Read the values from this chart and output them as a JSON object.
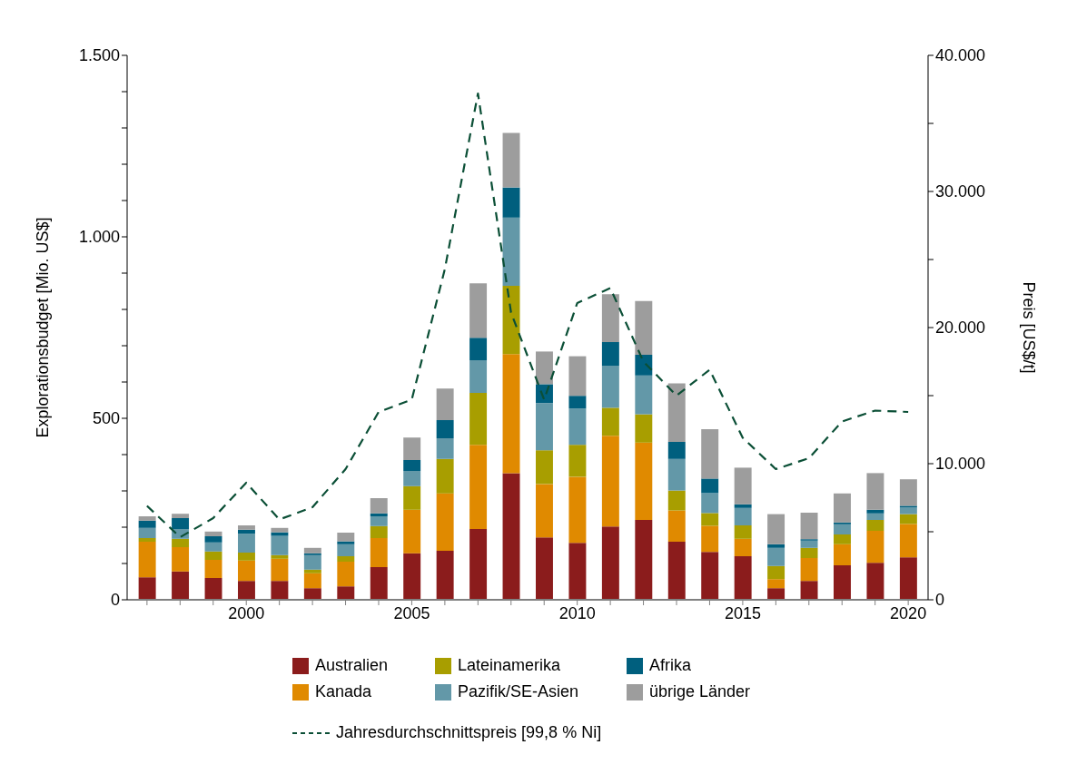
{
  "chart_data": {
    "type": "bar",
    "stacked": true,
    "x": [
      1997,
      1998,
      1999,
      2000,
      2001,
      2002,
      2003,
      2004,
      2005,
      2006,
      2007,
      2008,
      2009,
      2010,
      2011,
      2012,
      2013,
      2014,
      2015,
      2016,
      2017,
      2018,
      2019,
      2020
    ],
    "xlim": [
      1996.4,
      2020.6
    ],
    "xticks": [
      {
        "value": 1997,
        "label": null
      },
      {
        "value": 1998,
        "label": null
      },
      {
        "value": 1999,
        "label": null
      },
      2000,
      {
        "value": 2001,
        "label": null
      },
      {
        "value": 2002,
        "label": null
      },
      {
        "value": 2003,
        "label": null
      },
      {
        "value": 2004,
        "label": null
      },
      2005,
      {
        "value": 2006,
        "label": null
      },
      {
        "value": 2007,
        "label": null
      },
      {
        "value": 2008,
        "label": null
      },
      {
        "value": 2009,
        "label": null
      },
      2010,
      {
        "value": 2011,
        "label": null
      },
      {
        "value": 2012,
        "label": null
      },
      {
        "value": 2013,
        "label": null
      },
      {
        "value": 2014,
        "label": null
      },
      2015,
      {
        "value": 2016,
        "label": null
      },
      {
        "value": 2017,
        "label": null
      },
      {
        "value": 2018,
        "label": null
      },
      {
        "value": 2019,
        "label": null
      },
      2020
    ],
    "ylim": [
      0,
      1500
    ],
    "yticks": [
      0,
      {
        "value": 100,
        "label": null
      },
      {
        "value": 200,
        "label": null
      },
      {
        "value": 300,
        "label": null
      },
      {
        "value": 400,
        "label": null
      },
      500,
      {
        "value": 600,
        "label": null
      },
      {
        "value": 700,
        "label": null
      },
      {
        "value": 800,
        "label": null
      },
      {
        "value": 900,
        "label": null
      },
      {
        "value": 1000,
        "label": "1.000"
      },
      {
        "value": 1100,
        "label": null
      },
      {
        "value": 1200,
        "label": null
      },
      {
        "value": 1300,
        "label": null
      },
      {
        "value": 1400,
        "label": null
      },
      {
        "value": 1500,
        "label": "1.500"
      }
    ],
    "y2lim": [
      0,
      40000
    ],
    "y2ticks": [
      0,
      {
        "value": 5000,
        "label": null
      },
      {
        "value": 10000,
        "label": "10.000"
      },
      {
        "value": 15000,
        "label": null
      },
      {
        "value": 20000,
        "label": "20.000"
      },
      {
        "value": 25000,
        "label": null
      },
      {
        "value": 30000,
        "label": "30.000"
      },
      {
        "value": 35000,
        "label": null
      },
      {
        "value": 40000,
        "label": "40.000"
      }
    ],
    "ylabel": "Explorationsbudget [Mio. US$]",
    "y2label": "Preis [US$/t]",
    "legend": "bottom",
    "series": [
      {
        "name": "Australien",
        "color": "#8b1c1c",
        "values": [
          62,
          78,
          60,
          52,
          52,
          32,
          37,
          90,
          128,
          135,
          195,
          349,
          172,
          157,
          202,
          220,
          160,
          132,
          120,
          32,
          52,
          95,
          102,
          117
        ]
      },
      {
        "name": "Kanada",
        "color": "#e08a00",
        "values": [
          98,
          67,
          50,
          56,
          61,
          41,
          68,
          80,
          120,
          158,
          232,
          328,
          147,
          182,
          250,
          213,
          86,
          72,
          48,
          25,
          63,
          58,
          88,
          92
        ]
      },
      {
        "name": "Lateinamerika",
        "color": "#a89e00",
        "values": [
          10,
          23,
          23,
          22,
          10,
          10,
          15,
          33,
          65,
          95,
          143,
          188,
          93,
          88,
          77,
          78,
          55,
          35,
          37,
          36,
          28,
          27,
          30,
          27
        ]
      },
      {
        "name": "Pazifik/SE-Asien",
        "color": "#6398a8",
        "values": [
          28,
          27,
          25,
          52,
          53,
          40,
          33,
          27,
          42,
          57,
          90,
          188,
          130,
          100,
          116,
          107,
          87,
          55,
          48,
          50,
          20,
          28,
          18,
          18
        ]
      },
      {
        "name": "Afrika",
        "color": "#005f7e",
        "values": [
          20,
          30,
          17,
          11,
          10,
          5,
          8,
          8,
          30,
          50,
          62,
          83,
          52,
          35,
          65,
          57,
          47,
          40,
          10,
          10,
          4,
          5,
          10,
          5
        ]
      },
      {
        "name": "übrige Länder",
        "color": "#9d9d9d",
        "values": [
          12,
          12,
          13,
          12,
          12,
          15,
          24,
          42,
          62,
          87,
          150,
          150,
          90,
          109,
          132,
          148,
          161,
          136,
          101,
          83,
          73,
          80,
          101,
          73
        ]
      },
      {
        "name": "Jahresdurchschnittspreis [99,8 % Ni]",
        "type": "line",
        "axis": "y2",
        "line_style": "dashed",
        "color": "#0b4f36",
        "values": [
          6900,
          4600,
          6000,
          8600,
          5900,
          6800,
          9600,
          13800,
          14700,
          24300,
          37200,
          21100,
          14700,
          21800,
          22900,
          17500,
          15000,
          16900,
          11900,
          9600,
          10400,
          13100,
          13900,
          13800
        ]
      }
    ]
  }
}
